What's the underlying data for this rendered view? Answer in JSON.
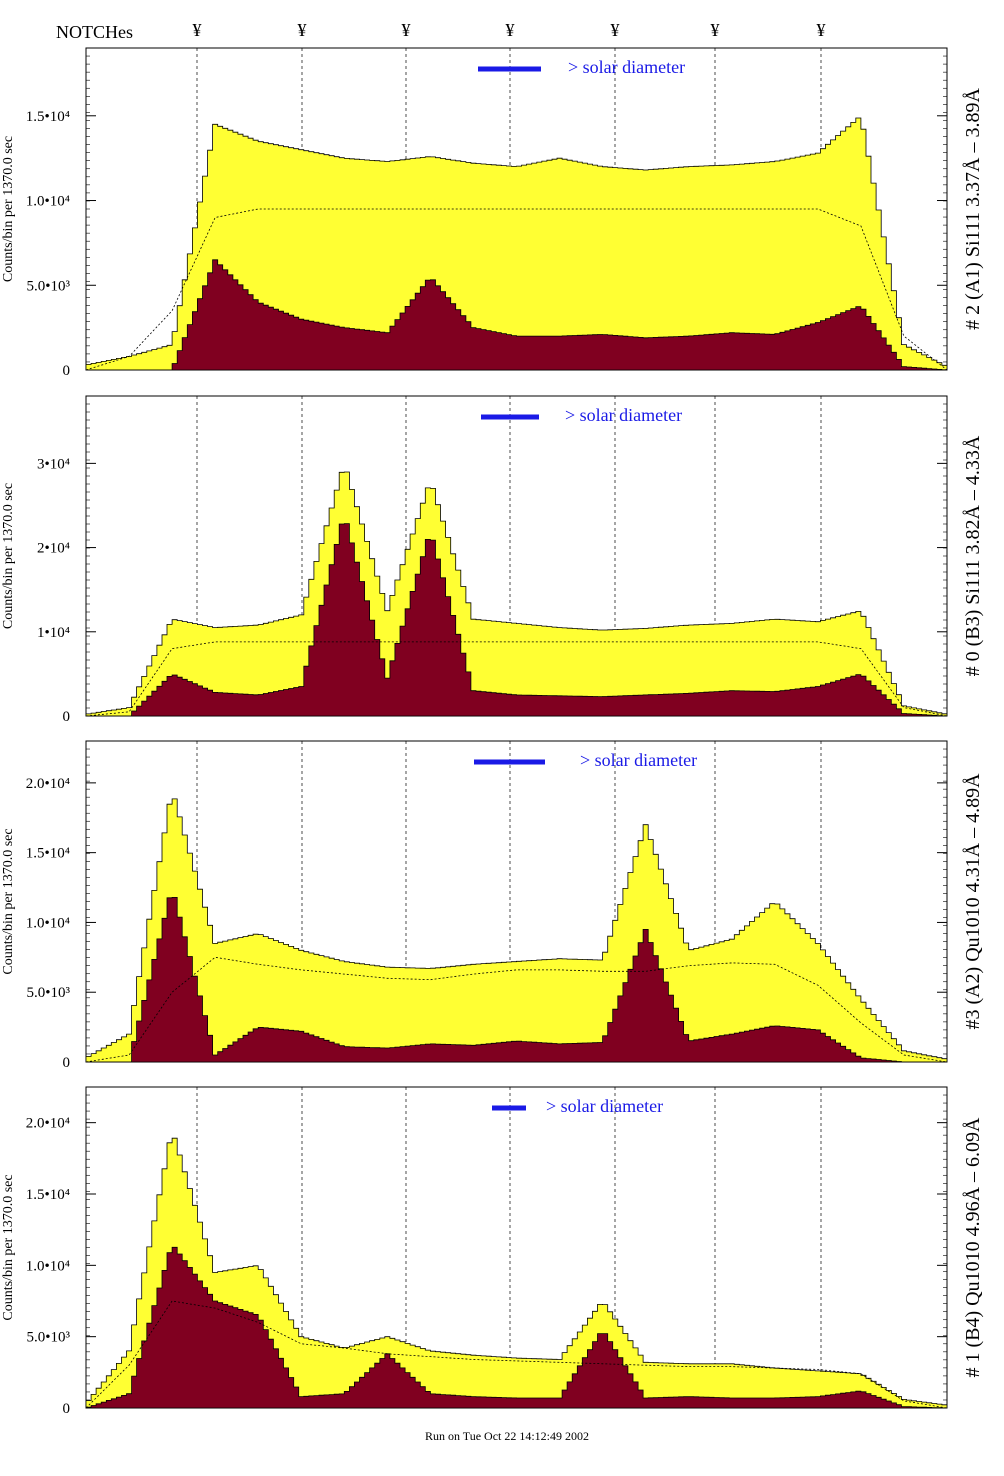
{
  "header": {
    "notches_label": "NOTCHes",
    "notch_symbol": "¥",
    "notch_count": 7
  },
  "footer": {
    "run_text": "Run on Tue Oct 22 14:12:49 2002"
  },
  "colors": {
    "fill_total": "#ffff33",
    "fill_component": "#800020",
    "marker_blue": "#1a1ae6",
    "outline": "#000000"
  },
  "chart_data": [
    {
      "type": "area",
      "panel_label": "# 2 (A1) Si111  3.37Å – 3.89Å",
      "ylabel": "Counts/bin per   1370.0 sec",
      "y_ticks": [
        "0",
        "5.0•10³",
        "1.0•10⁴",
        "1.5•10⁴"
      ],
      "y_tick_values": [
        0,
        5000,
        10000,
        15000
      ],
      "ylim": [
        0,
        19000
      ],
      "annotation": "> solar diameter",
      "x": [
        0,
        5,
        10,
        15,
        20,
        25,
        30,
        35,
        40,
        45,
        50,
        55,
        60,
        65,
        70,
        75,
        80,
        85,
        90,
        95,
        100
      ],
      "series": [
        {
          "name": "",
          "values": [
            300,
            800,
            1500,
            14500,
            13500,
            13000,
            12500,
            12300,
            12600,
            12200,
            12000,
            12500,
            12000,
            11800,
            12000,
            12100,
            12300,
            12800,
            15000,
            1500,
            200
          ]
        },
        {
          "name": "",
          "values": [
            0,
            0,
            0,
            6500,
            4000,
            3000,
            2500,
            2200,
            5500,
            2500,
            2000,
            2000,
            2100,
            1900,
            2000,
            2200,
            2100,
            2800,
            3800,
            200,
            0
          ]
        }
      ],
      "model": [
        0,
        800,
        3500,
        9000,
        9500,
        9500,
        9500,
        9500,
        9500,
        9500,
        9500,
        9500,
        9500,
        9500,
        9500,
        9500,
        9500,
        9500,
        8500,
        2000,
        0
      ]
    },
    {
      "type": "area",
      "panel_label": "# 0 (B3) Si111  3.82Å – 4.33Å",
      "ylabel": "Counts/bin per   1370.0 sec",
      "y_ticks": [
        "0",
        "1•10⁴",
        "2•10⁴",
        "3•10⁴"
      ],
      "y_tick_values": [
        0,
        10000,
        20000,
        30000
      ],
      "ylim": [
        0,
        38000
      ],
      "annotation": "> solar diameter",
      "x": [
        0,
        5,
        10,
        15,
        20,
        25,
        30,
        35,
        40,
        45,
        50,
        55,
        60,
        65,
        70,
        75,
        80,
        85,
        90,
        95,
        100
      ],
      "series": [
        {
          "name": "",
          "values": [
            200,
            1000,
            11500,
            10500,
            10800,
            12000,
            30000,
            12500,
            28000,
            11500,
            11000,
            10500,
            10200,
            10400,
            10800,
            11000,
            11500,
            11200,
            12500,
            1200,
            200
          ]
        },
        {
          "name": "",
          "values": [
            0,
            0,
            5000,
            2800,
            2500,
            3500,
            24000,
            4500,
            22000,
            3000,
            2500,
            2400,
            2300,
            2500,
            2700,
            3000,
            2900,
            3500,
            5000,
            300,
            0
          ]
        }
      ],
      "model": [
        0,
        500,
        8000,
        8800,
        8800,
        8800,
        8800,
        8800,
        8800,
        8800,
        8800,
        8800,
        8800,
        8800,
        8800,
        8800,
        8800,
        8800,
        8000,
        1000,
        0
      ]
    },
    {
      "type": "area",
      "panel_label": "#3 (A2) Qu1010  4.31Å – 4.89Å",
      "ylabel": "Counts/bin per   1370.0 sec",
      "y_ticks": [
        "0",
        "5.0•10³",
        "1.0•10⁴",
        "1.5•10⁴",
        "2.0•10⁴"
      ],
      "y_tick_values": [
        0,
        5000,
        10000,
        15000,
        20000
      ],
      "ylim": [
        0,
        23000
      ],
      "annotation": "> solar diameter",
      "x": [
        0,
        5,
        10,
        15,
        20,
        25,
        30,
        35,
        40,
        45,
        50,
        55,
        60,
        65,
        70,
        75,
        80,
        85,
        90,
        95,
        100
      ],
      "series": [
        {
          "name": "",
          "values": [
            300,
            2000,
            19500,
            8500,
            9200,
            8000,
            7200,
            6800,
            6700,
            7000,
            7200,
            7400,
            7300,
            17000,
            8000,
            8800,
            11500,
            8500,
            4500,
            800,
            200
          ]
        },
        {
          "name": "",
          "values": [
            0,
            0,
            12500,
            500,
            2500,
            2200,
            1100,
            1000,
            1300,
            1200,
            1500,
            1300,
            1400,
            9500,
            1500,
            2000,
            2600,
            2300,
            300,
            0,
            0
          ]
        }
      ],
      "model": [
        0,
        500,
        5000,
        7500,
        7000,
        6600,
        6300,
        6000,
        5900,
        6300,
        6600,
        6600,
        6500,
        6500,
        6900,
        7100,
        7000,
        5500,
        2800,
        500,
        0
      ]
    },
    {
      "type": "area",
      "panel_label": "# 1 (B4) Qu1010 4.96Å – 6.09Å",
      "ylabel": "Counts/bin per   1370.0 sec",
      "y_ticks": [
        "0",
        "5.0•10³",
        "1.0•10⁴",
        "1.5•10⁴",
        "2.0•10⁴"
      ],
      "y_tick_values": [
        0,
        5000,
        10000,
        15000,
        20000
      ],
      "ylim": [
        0,
        22500
      ],
      "annotation": "> solar diameter",
      "x": [
        0,
        5,
        10,
        15,
        20,
        25,
        30,
        35,
        40,
        45,
        50,
        55,
        60,
        65,
        70,
        75,
        80,
        85,
        90,
        95,
        100
      ],
      "series": [
        {
          "name": "",
          "values": [
            300,
            4000,
            19500,
            9500,
            10000,
            5000,
            4200,
            5000,
            4000,
            3700,
            3500,
            3400,
            7500,
            3200,
            3100,
            3100,
            2800,
            2600,
            2400,
            600,
            200
          ]
        },
        {
          "name": "",
          "values": [
            0,
            1000,
            11500,
            7500,
            6500,
            800,
            1000,
            3800,
            1000,
            800,
            700,
            700,
            5500,
            700,
            800,
            700,
            700,
            800,
            1200,
            100,
            0
          ]
        }
      ],
      "model": [
        0,
        3000,
        7500,
        7000,
        6000,
        4500,
        4200,
        3800,
        3600,
        3400,
        3300,
        3200,
        3100,
        3000,
        2900,
        2900,
        2800,
        2700,
        2400,
        500,
        0
      ]
    }
  ]
}
